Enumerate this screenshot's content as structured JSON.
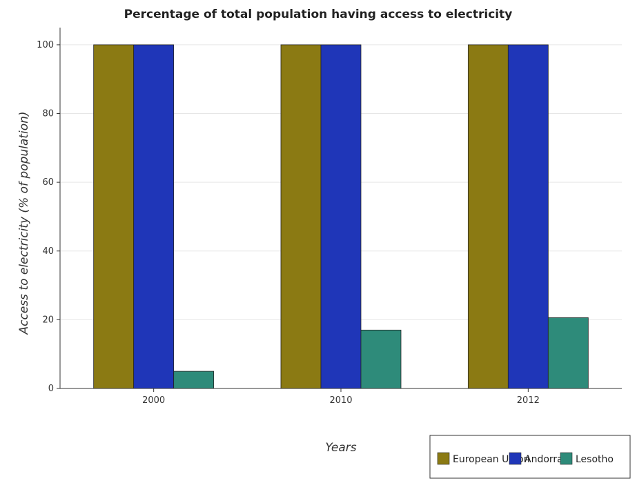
{
  "chart_data": {
    "type": "bar",
    "title": "Percentage of total population having access to electricity",
    "xlabel": "Years",
    "ylabel": "Access to electricity (% of population)",
    "categories": [
      "2000",
      "2010",
      "2012"
    ],
    "ylim": [
      0,
      105
    ],
    "yticks": [
      0,
      20,
      40,
      60,
      80,
      100
    ],
    "grid": true,
    "legend_position": "bottom-right",
    "series": [
      {
        "name": "European Union",
        "color": "#8B7A13",
        "values": [
          100,
          100,
          100
        ]
      },
      {
        "name": "Andorra",
        "color": "#1F36B8",
        "values": [
          100,
          100,
          100
        ]
      },
      {
        "name": "Lesotho",
        "color": "#2E8B7A",
        "values": [
          5,
          17,
          20.6
        ]
      }
    ]
  }
}
